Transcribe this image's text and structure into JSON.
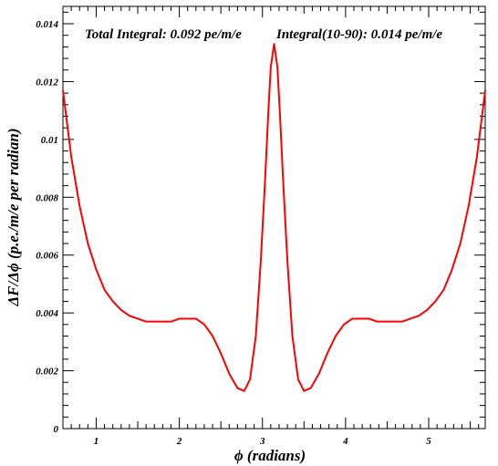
{
  "chart_data": {
    "type": "line",
    "title": "",
    "xlabel": "ϕ (radians)",
    "ylabel": "ΔF/Δϕ (p.e./m/e per radian)",
    "xlim": [
      0.6,
      5.68
    ],
    "ylim": [
      0,
      0.0146
    ],
    "x_ticks": [
      1,
      2,
      3,
      4,
      5
    ],
    "x_tick_labels": [
      "1",
      "2",
      "3",
      "4",
      "5"
    ],
    "y_ticks": [
      0,
      0.002,
      0.004,
      0.006,
      0.008,
      0.01,
      0.012,
      0.014
    ],
    "y_tick_labels": [
      "0",
      "0.002",
      "0.004",
      "0.006",
      "0.008",
      "0.01",
      "0.012",
      "0.014"
    ],
    "grid": false,
    "annotations": [
      "Total Integral: 0.092 pe/m/e",
      "Integral(10-90): 0.014 pe/m/e"
    ],
    "series": [
      {
        "color": "#ff0000",
        "x": [
          0.6,
          0.7,
          0.8,
          0.9,
          1.0,
          1.1,
          1.2,
          1.3,
          1.4,
          1.5,
          1.6,
          1.7,
          1.8,
          1.9,
          2.0,
          2.1,
          2.2,
          2.3,
          2.4,
          2.5,
          2.6,
          2.7,
          2.78,
          2.85,
          2.92,
          2.98,
          3.03,
          3.07,
          3.1,
          3.14,
          3.18,
          3.21,
          3.25,
          3.3,
          3.36,
          3.43,
          3.5,
          3.58,
          3.68,
          3.78,
          3.88,
          3.98,
          4.08,
          4.18,
          4.28,
          4.38,
          4.48,
          4.58,
          4.68,
          4.78,
          4.88,
          4.98,
          5.08,
          5.18,
          5.28,
          5.38,
          5.48,
          5.58,
          5.68
        ],
        "y": [
          0.0117,
          0.0094,
          0.0077,
          0.0064,
          0.0055,
          0.0048,
          0.0044,
          0.0041,
          0.0039,
          0.0038,
          0.0037,
          0.0037,
          0.0037,
          0.0037,
          0.0038,
          0.0038,
          0.0038,
          0.0036,
          0.0032,
          0.0026,
          0.0019,
          0.0014,
          0.0013,
          0.0017,
          0.0032,
          0.0058,
          0.0085,
          0.0109,
          0.0125,
          0.0133,
          0.0125,
          0.0109,
          0.0085,
          0.0058,
          0.0032,
          0.0017,
          0.0013,
          0.0014,
          0.0019,
          0.0026,
          0.0032,
          0.0036,
          0.0038,
          0.0038,
          0.0038,
          0.0037,
          0.0037,
          0.0037,
          0.0037,
          0.0038,
          0.0039,
          0.0041,
          0.0044,
          0.0048,
          0.0055,
          0.0064,
          0.0077,
          0.0094,
          0.0117
        ]
      }
    ]
  }
}
